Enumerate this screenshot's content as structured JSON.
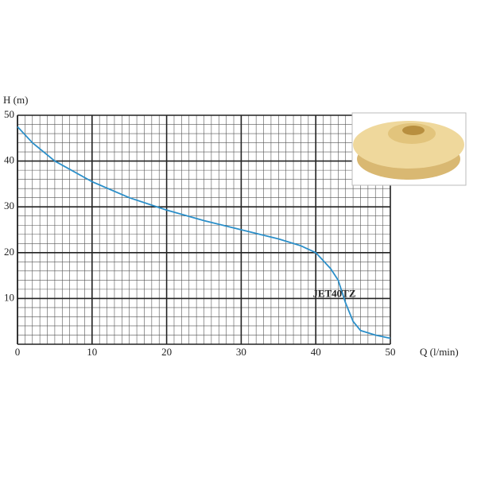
{
  "chart_data": {
    "type": "line",
    "x_label": "Q (l/min)",
    "y_label": "H (m)",
    "x": [
      0,
      2,
      5,
      10,
      15,
      20,
      25,
      30,
      35,
      38,
      40,
      42,
      43,
      44,
      45,
      46,
      48,
      50
    ],
    "series": [
      {
        "name": "JET40TZ",
        "color": "#2b8fc9",
        "values": [
          47.5,
          44,
          40,
          35.5,
          32,
          29.3,
          27,
          25,
          23,
          21.5,
          20,
          16.5,
          14,
          9,
          5,
          3,
          2,
          1.3
        ]
      }
    ],
    "xlim": [
      0,
      50
    ],
    "ylim": [
      0,
      50
    ],
    "xticks": [
      0,
      10,
      20,
      30,
      40,
      50
    ],
    "yticks": [
      10,
      20,
      30,
      40,
      50
    ],
    "grid": true
  }
}
